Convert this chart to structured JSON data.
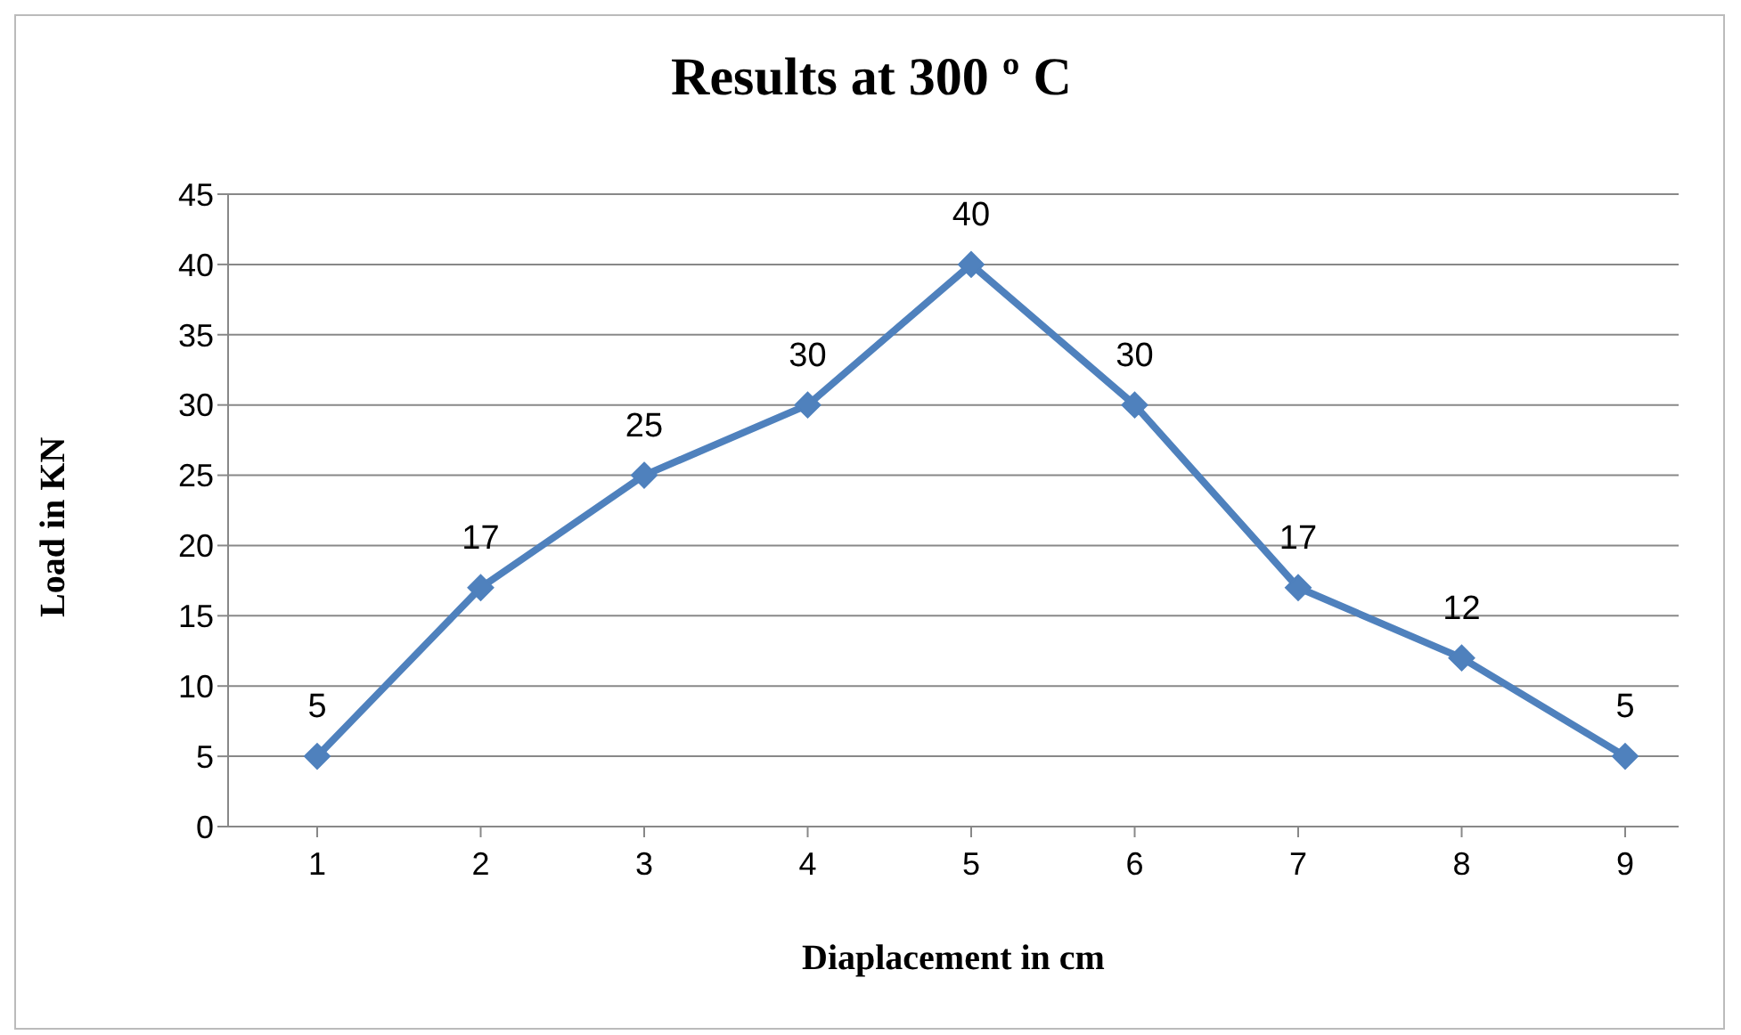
{
  "chart_data": {
    "type": "line",
    "title": "Results at 300 º C",
    "xlabel": "Diaplacement in cm",
    "ylabel": "Load in KN",
    "categories": [
      "1",
      "2",
      "3",
      "4",
      "5",
      "6",
      "7",
      "8",
      "9"
    ],
    "series": [
      {
        "color": "#4f81bd",
        "values": [
          5,
          17,
          25,
          30,
          40,
          30,
          17,
          12,
          5
        ]
      }
    ],
    "ylim": [
      0,
      45
    ],
    "yticks": [
      0,
      5,
      10,
      15,
      20,
      25,
      30,
      35,
      40,
      45
    ],
    "grid": "y",
    "marker": "diamond",
    "line_style": "solid",
    "data_labels": true
  }
}
